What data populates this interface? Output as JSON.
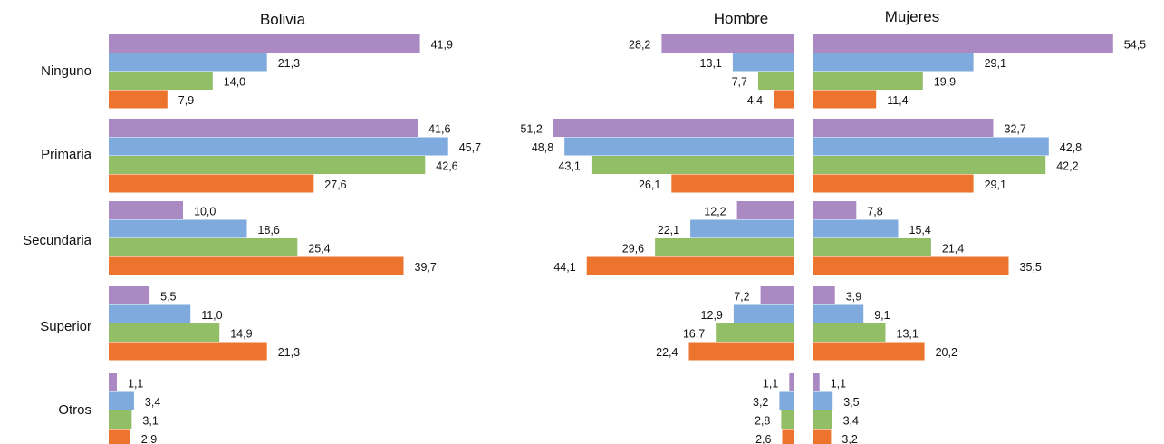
{
  "colors": [
    "#ab89c2",
    "#7eaadd",
    "#92be67",
    "#ec742c"
  ],
  "chart_data": [
    {
      "type": "bar",
      "title": "Bolivia",
      "categories": [
        "Ninguno",
        "Primaria",
        "Secundaria",
        "Superior",
        "Otros"
      ],
      "series": [
        {
          "values": [
            41.9,
            41.6,
            10.0,
            5.5,
            1.1
          ]
        },
        {
          "values": [
            21.3,
            45.7,
            18.6,
            11.0,
            3.4
          ]
        },
        {
          "values": [
            14.0,
            42.6,
            25.4,
            14.9,
            3.1
          ]
        },
        {
          "values": [
            7.9,
            27.6,
            39.7,
            21.3,
            2.9
          ]
        }
      ],
      "labels": [
        [
          "41,9",
          "41,6",
          "10,0",
          "5,5",
          "1,1"
        ],
        [
          "21,3",
          "45,7",
          "18,6",
          "11,0",
          "3,4"
        ],
        [
          "14,0",
          "42,6",
          "25,4",
          "14,9",
          "3,1"
        ],
        [
          "7,9",
          "27,6",
          "39,7",
          "21,3",
          "2,9"
        ]
      ]
    },
    {
      "type": "bar",
      "title": "Hombre",
      "categories": [
        "Ninguno",
        "Primaria",
        "Secundaria",
        "Superior",
        "Otros"
      ],
      "series": [
        {
          "values": [
            28.2,
            51.2,
            12.2,
            7.2,
            1.1
          ]
        },
        {
          "values": [
            13.1,
            48.8,
            22.1,
            12.9,
            3.2
          ]
        },
        {
          "values": [
            7.7,
            43.1,
            29.6,
            16.7,
            2.8
          ]
        },
        {
          "values": [
            4.4,
            26.1,
            44.1,
            22.4,
            2.6
          ]
        }
      ],
      "labels": [
        [
          "28,2",
          "51,2",
          "12,2",
          "7,2",
          "1,1"
        ],
        [
          "13,1",
          "48,8",
          "22,1",
          "12,9",
          "3,2"
        ],
        [
          "7,7",
          "43,1",
          "29,6",
          "16,7",
          "2,8"
        ],
        [
          "4,4",
          "26,1",
          "44,1",
          "22,4",
          "2,6"
        ]
      ]
    },
    {
      "type": "bar",
      "title": "Mujeres",
      "categories": [
        "Ninguno",
        "Primaria",
        "Secundaria",
        "Superior",
        "Otros"
      ],
      "series": [
        {
          "values": [
            54.5,
            32.7,
            7.8,
            3.9,
            1.1
          ]
        },
        {
          "values": [
            29.1,
            42.8,
            15.4,
            9.1,
            3.5
          ]
        },
        {
          "values": [
            19.9,
            42.2,
            21.4,
            13.1,
            3.4
          ]
        },
        {
          "values": [
            11.4,
            29.1,
            35.5,
            20.2,
            3.2
          ]
        }
      ],
      "labels": [
        [
          "54,5",
          "32,7",
          "7,8",
          "3,9",
          "1,1"
        ],
        [
          "29,1",
          "42,8",
          "15,4",
          "9,1",
          "3,5"
        ],
        [
          "19,9",
          "42,2",
          "21,4",
          "13,1",
          "3,4"
        ],
        [
          "11,4",
          "29,1",
          "35,5",
          "20,2",
          "3,2"
        ]
      ]
    }
  ]
}
